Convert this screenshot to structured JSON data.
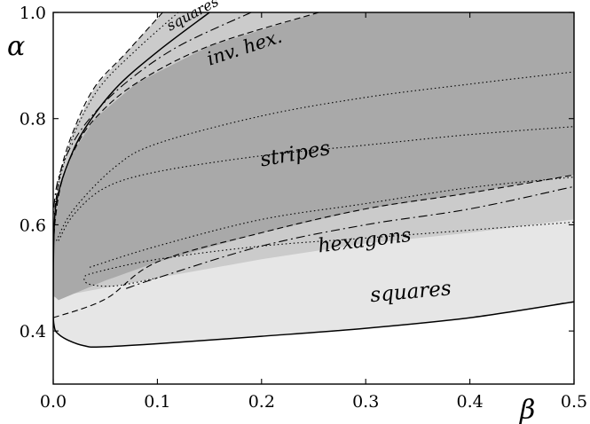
{
  "chart_data": {
    "type": "area",
    "xlabel": "β",
    "ylabel": "α",
    "xlim": [
      0,
      0.5
    ],
    "ylim": [
      0.3,
      1.0
    ],
    "x_ticks": [
      "0.0",
      "0.1",
      "0.2",
      "0.3",
      "0.4",
      "0.5"
    ],
    "y_ticks": [
      "0.4",
      "0.6",
      "0.8",
      "1.0"
    ],
    "grid": false,
    "colors": {
      "light": "#e6e6e6",
      "mid": "#cbcbcb",
      "dark": "#a9a9a9"
    },
    "regions": [
      {
        "shade": "light",
        "points": [
          [
            0.15,
            1.0
          ],
          [
            0.1,
            0.926
          ],
          [
            0.06,
            0.857
          ],
          [
            0.03,
            0.78
          ],
          [
            0.015,
            0.72
          ],
          [
            0.005,
            0.66
          ],
          [
            0.001,
            0.6
          ],
          [
            0.0,
            0.45
          ],
          [
            0.001,
            0.408
          ],
          [
            0.005,
            0.394
          ],
          [
            0.015,
            0.382
          ],
          [
            0.03,
            0.372
          ],
          [
            0.045,
            0.37
          ],
          [
            0.1,
            0.376
          ],
          [
            0.2,
            0.39
          ],
          [
            0.3,
            0.405
          ],
          [
            0.4,
            0.425
          ],
          [
            0.5,
            0.455
          ],
          [
            0.5,
            1.0
          ]
        ]
      },
      {
        "shade": "mid",
        "points": [
          [
            0.105,
            1.0
          ],
          [
            0.07,
            0.924
          ],
          [
            0.04,
            0.86
          ],
          [
            0.02,
            0.78
          ],
          [
            0.007,
            0.7
          ],
          [
            0.001,
            0.62
          ],
          [
            0.0,
            0.55
          ],
          [
            0.0,
            0.463
          ],
          [
            0.1,
            0.5
          ],
          [
            0.2,
            0.535
          ],
          [
            0.3,
            0.565
          ],
          [
            0.4,
            0.585
          ],
          [
            0.5,
            0.61
          ],
          [
            0.5,
            1.0
          ]
        ]
      },
      {
        "shade": "dark",
        "points": [
          [
            0.255,
            1.0
          ],
          [
            0.15,
            0.937
          ],
          [
            0.08,
            0.867
          ],
          [
            0.04,
            0.8
          ],
          [
            0.02,
            0.74
          ],
          [
            0.008,
            0.68
          ],
          [
            0.002,
            0.61
          ],
          [
            0.0,
            0.55
          ],
          [
            0.0,
            0.467
          ],
          [
            0.005,
            0.458
          ],
          [
            0.05,
            0.495
          ],
          [
            0.1,
            0.53
          ],
          [
            0.2,
            0.585
          ],
          [
            0.3,
            0.63
          ],
          [
            0.4,
            0.66
          ],
          [
            0.5,
            0.694
          ],
          [
            0.5,
            1.0
          ]
        ]
      }
    ],
    "curves": [
      {
        "style": "solid",
        "points": [
          [
            0.15,
            1.0
          ],
          [
            0.1,
            0.926
          ],
          [
            0.06,
            0.857
          ],
          [
            0.03,
            0.78
          ],
          [
            0.015,
            0.72
          ],
          [
            0.005,
            0.66
          ],
          [
            0.001,
            0.6
          ],
          [
            0.0,
            0.45
          ],
          [
            0.001,
            0.408
          ],
          [
            0.005,
            0.394
          ],
          [
            0.015,
            0.382
          ],
          [
            0.03,
            0.372
          ],
          [
            0.045,
            0.37
          ],
          [
            0.1,
            0.376
          ],
          [
            0.2,
            0.39
          ],
          [
            0.3,
            0.405
          ],
          [
            0.4,
            0.425
          ],
          [
            0.5,
            0.455
          ]
        ]
      },
      {
        "style": "dashed",
        "points": [
          [
            0.0,
            0.425
          ],
          [
            0.05,
            0.46
          ],
          [
            0.1,
            0.53
          ],
          [
            0.2,
            0.585
          ],
          [
            0.3,
            0.63
          ],
          [
            0.4,
            0.66
          ],
          [
            0.5,
            0.694
          ]
        ]
      },
      {
        "style": "dashed",
        "points": [
          [
            0.255,
            1.0
          ],
          [
            0.15,
            0.937
          ],
          [
            0.08,
            0.867
          ],
          [
            0.04,
            0.8
          ],
          [
            0.02,
            0.74
          ],
          [
            0.008,
            0.68
          ],
          [
            0.002,
            0.61
          ],
          [
            0.0,
            0.55
          ]
        ]
      },
      {
        "style": "dashed",
        "points": [
          [
            0.105,
            1.0
          ],
          [
            0.07,
            0.924
          ],
          [
            0.04,
            0.86
          ],
          [
            0.02,
            0.78
          ],
          [
            0.007,
            0.7
          ],
          [
            0.001,
            0.62
          ]
        ]
      },
      {
        "style": "dashdot",
        "points": [
          [
            0.07,
            0.48
          ],
          [
            0.1,
            0.5
          ],
          [
            0.2,
            0.56
          ],
          [
            0.3,
            0.6
          ],
          [
            0.4,
            0.63
          ],
          [
            0.5,
            0.672
          ]
        ]
      },
      {
        "style": "dashdot",
        "points": [
          [
            0.19,
            1.0
          ],
          [
            0.12,
            0.936
          ],
          [
            0.07,
            0.868
          ],
          [
            0.035,
            0.8
          ],
          [
            0.015,
            0.74
          ],
          [
            0.004,
            0.68
          ],
          [
            0.0,
            0.62
          ]
        ]
      },
      {
        "style": "dotted",
        "points": [
          [
            0.003,
            0.57
          ],
          [
            0.02,
            0.63
          ],
          [
            0.06,
            0.71
          ],
          [
            0.1,
            0.753
          ],
          [
            0.2,
            0.805
          ],
          [
            0.3,
            0.84
          ],
          [
            0.4,
            0.865
          ],
          [
            0.5,
            0.888
          ]
        ]
      },
      {
        "style": "dotted",
        "points": [
          [
            0.005,
            0.57
          ],
          [
            0.02,
            0.62
          ],
          [
            0.05,
            0.67
          ],
          [
            0.1,
            0.7
          ],
          [
            0.2,
            0.73
          ],
          [
            0.3,
            0.75
          ],
          [
            0.4,
            0.77
          ],
          [
            0.5,
            0.785
          ]
        ]
      },
      {
        "style": "dotted",
        "points": [
          [
            0.035,
            0.52
          ],
          [
            0.1,
            0.56
          ],
          [
            0.2,
            0.61
          ],
          [
            0.3,
            0.64
          ],
          [
            0.4,
            0.67
          ],
          [
            0.5,
            0.69
          ]
        ]
      },
      {
        "style": "dotted",
        "points": [
          [
            0.12,
            1.0
          ],
          [
            0.08,
            0.93
          ],
          [
            0.045,
            0.86
          ],
          [
            0.022,
            0.78
          ],
          [
            0.008,
            0.7
          ],
          [
            0.002,
            0.64
          ]
        ]
      },
      {
        "style": "dotted",
        "points": [
          [
            0.1,
            0.5
          ],
          [
            0.06,
            0.485
          ],
          [
            0.035,
            0.488
          ],
          [
            0.03,
            0.5
          ],
          [
            0.04,
            0.51
          ],
          [
            0.1,
            0.535
          ],
          [
            0.2,
            0.56
          ],
          [
            0.3,
            0.575
          ],
          [
            0.4,
            0.59
          ],
          [
            0.5,
            0.605
          ]
        ]
      }
    ],
    "labels": [
      {
        "text": "squares",
        "x": 0.112,
        "y": 0.965,
        "rotate": -28,
        "size": 16
      },
      {
        "text": "inv. hex.",
        "x": 0.15,
        "y": 0.9,
        "rotate": -18,
        "size": 21
      },
      {
        "text": "stripes",
        "x": 0.2,
        "y": 0.71,
        "rotate": -10,
        "size": 23
      },
      {
        "text": "hexagons",
        "x": 0.255,
        "y": 0.548,
        "rotate": -7,
        "size": 22
      },
      {
        "text": "squares",
        "x": 0.305,
        "y": 0.455,
        "rotate": -5,
        "size": 23
      }
    ]
  }
}
